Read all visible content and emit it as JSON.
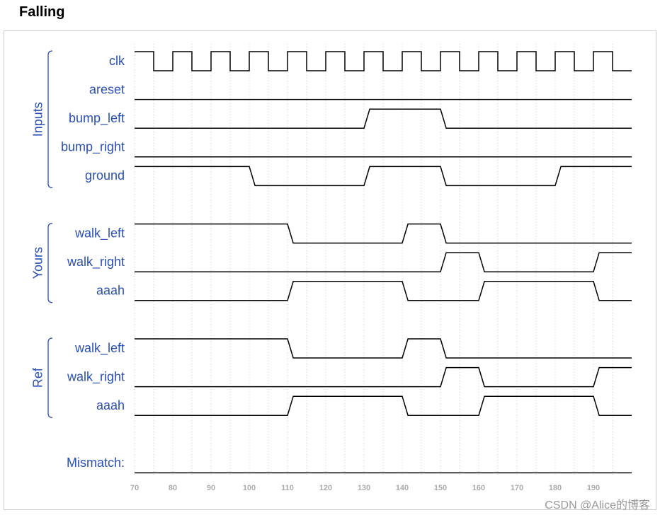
{
  "title": "Falling",
  "watermark": "CSDN @Alice的博客",
  "chart_data": {
    "type": "waveform",
    "xlim": [
      70,
      200
    ],
    "xticks": [
      70,
      80,
      90,
      100,
      110,
      120,
      130,
      140,
      150,
      160,
      170,
      180,
      190
    ],
    "groups": [
      {
        "name": "Inputs",
        "signals": [
          {
            "name": "clk",
            "changes": [
              [
                70,
                1
              ],
              [
                75,
                0
              ],
              [
                80,
                1
              ],
              [
                85,
                0
              ],
              [
                90,
                1
              ],
              [
                95,
                0
              ],
              [
                100,
                1
              ],
              [
                105,
                0
              ],
              [
                110,
                1
              ],
              [
                115,
                0
              ],
              [
                120,
                1
              ],
              [
                125,
                0
              ],
              [
                130,
                1
              ],
              [
                135,
                0
              ],
              [
                140,
                1
              ],
              [
                145,
                0
              ],
              [
                150,
                1
              ],
              [
                155,
                0
              ],
              [
                160,
                1
              ],
              [
                165,
                0
              ],
              [
                170,
                1
              ],
              [
                175,
                0
              ],
              [
                180,
                1
              ],
              [
                185,
                0
              ],
              [
                190,
                1
              ],
              [
                195,
                0
              ]
            ]
          },
          {
            "name": "areset",
            "changes": [
              [
                70,
                0
              ]
            ]
          },
          {
            "name": "bump_left",
            "changes": [
              [
                70,
                0
              ],
              [
                130,
                1
              ],
              [
                150,
                0
              ]
            ]
          },
          {
            "name": "bump_right",
            "changes": [
              [
                70,
                0
              ]
            ]
          },
          {
            "name": "ground",
            "changes": [
              [
                70,
                1
              ],
              [
                100,
                0
              ],
              [
                130,
                1
              ],
              [
                150,
                0
              ],
              [
                180,
                1
              ]
            ]
          }
        ]
      },
      {
        "name": "Yours",
        "signals": [
          {
            "name": "walk_left",
            "changes": [
              [
                70,
                1
              ],
              [
                110,
                0
              ],
              [
                140,
                1
              ],
              [
                150,
                0
              ]
            ]
          },
          {
            "name": "walk_right",
            "changes": [
              [
                70,
                0
              ],
              [
                150,
                1
              ],
              [
                160,
                0
              ],
              [
                190,
                1
              ]
            ]
          },
          {
            "name": "aaah",
            "changes": [
              [
                70,
                0
              ],
              [
                110,
                1
              ],
              [
                140,
                0
              ],
              [
                160,
                1
              ],
              [
                190,
                0
              ]
            ]
          }
        ]
      },
      {
        "name": "Ref",
        "signals": [
          {
            "name": "walk_left",
            "changes": [
              [
                70,
                1
              ],
              [
                110,
                0
              ],
              [
                140,
                1
              ],
              [
                150,
                0
              ]
            ]
          },
          {
            "name": "walk_right",
            "changes": [
              [
                70,
                0
              ],
              [
                150,
                1
              ],
              [
                160,
                0
              ],
              [
                190,
                1
              ]
            ]
          },
          {
            "name": "aaah",
            "changes": [
              [
                70,
                0
              ],
              [
                110,
                1
              ],
              [
                140,
                0
              ],
              [
                160,
                1
              ],
              [
                190,
                0
              ]
            ]
          }
        ]
      }
    ],
    "mismatch": {
      "name": "Mismatch:",
      "changes": [
        [
          70,
          0
        ]
      ]
    }
  }
}
